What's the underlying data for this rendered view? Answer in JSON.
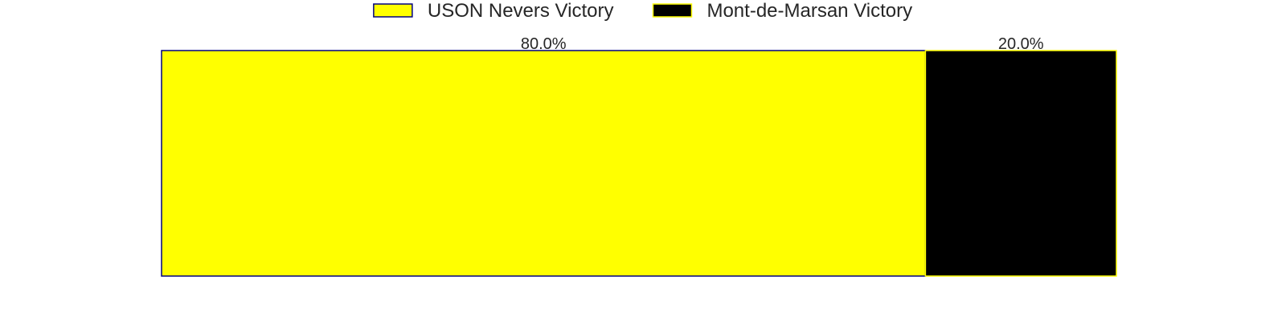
{
  "chart_data": {
    "type": "bar",
    "orientation": "horizontal-stacked",
    "title": "",
    "xlabel": "",
    "ylabel": "",
    "xlim": [
      0,
      100
    ],
    "grid": false,
    "legend_position": "top-center",
    "series": [
      {
        "name": "USON Nevers Victory",
        "values": [
          80.0
        ],
        "label": "80.0%",
        "color": "#ffff00",
        "edge_color": "#000080"
      },
      {
        "name": "Mont-de-Marsan Victory",
        "values": [
          20.0
        ],
        "label": "20.0%",
        "color": "#000000",
        "edge_color": "#ffff00"
      }
    ]
  }
}
